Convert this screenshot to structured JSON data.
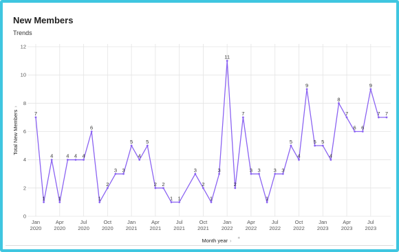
{
  "header": {
    "title": "New Members",
    "subtitle": "Trends"
  },
  "colors": {
    "line": "#8b63f2",
    "grid": "#e4e4e4",
    "border": "#3fc6e0"
  },
  "chart_data": {
    "type": "line",
    "title": "New Members",
    "subtitle": "Trends",
    "xlabel": "Month year",
    "ylabel": "Total New Members",
    "ylim": [
      0,
      12
    ],
    "yticks": [
      "0",
      "2",
      "4",
      "6",
      "8",
      "10",
      "12"
    ],
    "grid": true,
    "xticks": [
      {
        "month": "2020-01",
        "line1": "Jan",
        "line2": "2020"
      },
      {
        "month": "2020-04",
        "line1": "Apr",
        "line2": "2020"
      },
      {
        "month": "2020-07",
        "line1": "Jul",
        "line2": "2020"
      },
      {
        "month": "2020-10",
        "line1": "Oct",
        "line2": "2020"
      },
      {
        "month": "2021-01",
        "line1": "Jan",
        "line2": "2021"
      },
      {
        "month": "2021-04",
        "line1": "Apr",
        "line2": "2021"
      },
      {
        "month": "2021-07",
        "line1": "Jul",
        "line2": "2021"
      },
      {
        "month": "2021-10",
        "line1": "Oct",
        "line2": "2021"
      },
      {
        "month": "2022-01",
        "line1": "Jan",
        "line2": "2022"
      },
      {
        "month": "2022-04",
        "line1": "Apr",
        "line2": "2022"
      },
      {
        "month": "2022-07",
        "line1": "Jul",
        "line2": "2022"
      },
      {
        "month": "2022-10",
        "line1": "Oct",
        "line2": "2022"
      },
      {
        "month": "2023-01",
        "line1": "Jan",
        "line2": "2023"
      },
      {
        "month": "2023-04",
        "line1": "Apr",
        "line2": "2023"
      },
      {
        "month": "2023-07",
        "line1": "Jul",
        "line2": "2023"
      }
    ],
    "x": [
      "2020-01",
      "2020-02",
      "2020-03",
      "2020-04",
      "2020-05",
      "2020-06",
      "2020-07",
      "2020-08",
      "2020-09",
      "2020-10",
      "2020-11",
      "2020-12",
      "2021-01",
      "2021-02",
      "2021-03",
      "2021-04",
      "2021-05",
      "2021-06",
      "2021-07",
      "2021-09",
      "2021-10",
      "2021-11",
      "2021-12",
      "2022-01",
      "2022-02",
      "2022-03",
      "2022-04",
      "2022-05",
      "2022-06",
      "2022-07",
      "2022-08",
      "2022-09",
      "2022-10",
      "2022-11",
      "2022-12",
      "2023-01",
      "2023-02",
      "2023-03",
      "2023-04",
      "2023-05",
      "2023-06",
      "2023-07",
      "2023-08",
      "2023-09"
    ],
    "series": [
      {
        "values": [
          7,
          1,
          4,
          1,
          4,
          4,
          4,
          6,
          1,
          2,
          3,
          3,
          5,
          4,
          5,
          2,
          2,
          1,
          1,
          3,
          2,
          1,
          3,
          11,
          2,
          7,
          3,
          3,
          1,
          3,
          3,
          5,
          4,
          9,
          5,
          5,
          4,
          8,
          7,
          6,
          6,
          9,
          7,
          7
        ]
      }
    ]
  }
}
